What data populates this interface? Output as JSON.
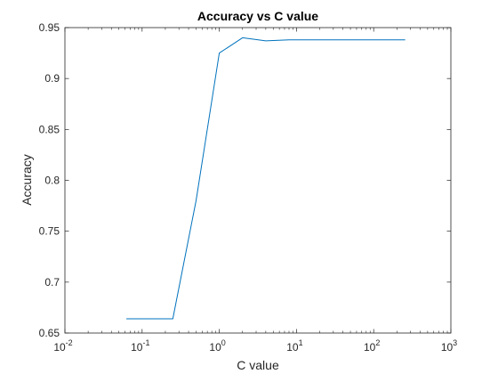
{
  "chart_data": {
    "type": "line",
    "title": "Accuracy vs C value",
    "xlabel": "C value",
    "ylabel": "Accuracy",
    "xscale": "log",
    "xlim": [
      0.01,
      1000
    ],
    "ylim": [
      0.65,
      0.95
    ],
    "x_ticks": [
      {
        "value": 0.01,
        "base": "10",
        "exp": "-2"
      },
      {
        "value": 0.1,
        "base": "10",
        "exp": "-1"
      },
      {
        "value": 1,
        "base": "10",
        "exp": "0"
      },
      {
        "value": 10,
        "base": "10",
        "exp": "1"
      },
      {
        "value": 100,
        "base": "10",
        "exp": "2"
      },
      {
        "value": 1000,
        "base": "10",
        "exp": "3"
      }
    ],
    "y_ticks": [
      {
        "value": 0.65,
        "label": "0.65"
      },
      {
        "value": 0.7,
        "label": "0.7"
      },
      {
        "value": 0.75,
        "label": "0.75"
      },
      {
        "value": 0.8,
        "label": "0.8"
      },
      {
        "value": 0.85,
        "label": "0.85"
      },
      {
        "value": 0.9,
        "label": "0.9"
      },
      {
        "value": 0.95,
        "label": "0.95"
      }
    ],
    "grid": false,
    "legend": "none",
    "series": [
      {
        "color": "#0072bd",
        "points": [
          {
            "x": 0.0625,
            "y": 0.664
          },
          {
            "x": 0.125,
            "y": 0.664
          },
          {
            "x": 0.25,
            "y": 0.664
          },
          {
            "x": 0.5,
            "y": 0.78
          },
          {
            "x": 1,
            "y": 0.925
          },
          {
            "x": 2,
            "y": 0.94
          },
          {
            "x": 4,
            "y": 0.937
          },
          {
            "x": 8,
            "y": 0.938
          },
          {
            "x": 16,
            "y": 0.938
          },
          {
            "x": 32,
            "y": 0.938
          },
          {
            "x": 64,
            "y": 0.938
          },
          {
            "x": 128,
            "y": 0.938
          },
          {
            "x": 256,
            "y": 0.938
          }
        ]
      }
    ]
  }
}
